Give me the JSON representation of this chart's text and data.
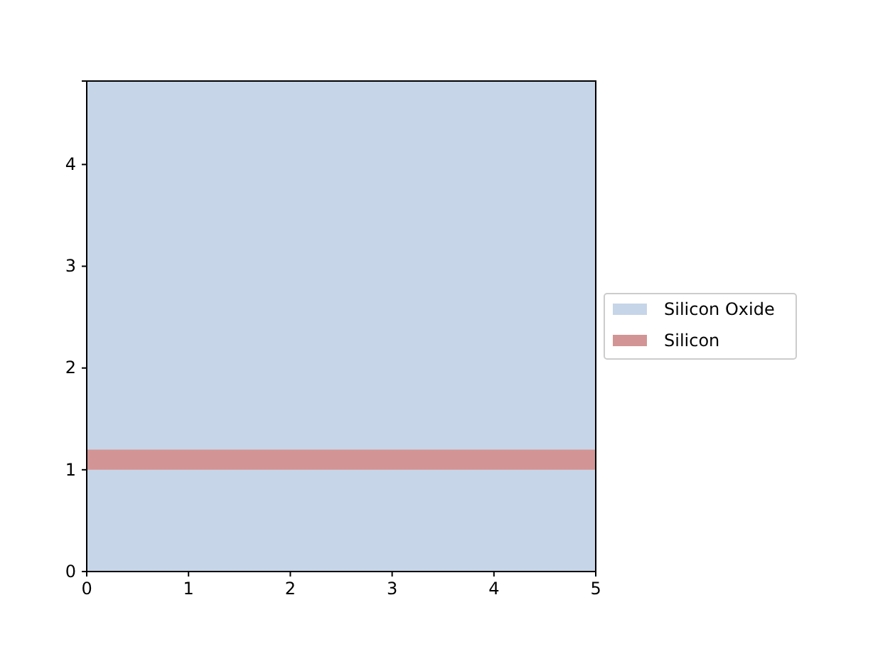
{
  "chart_data": {
    "type": "area",
    "xlim": [
      0,
      5
    ],
    "xticks": [
      0,
      1,
      2,
      3,
      4,
      5
    ],
    "ylim": [
      0,
      4.82
    ],
    "yticks": [
      0,
      1,
      2,
      3,
      4
    ],
    "legend": "right",
    "bands": [
      {
        "axis": "y",
        "from": 0,
        "to": 1.0,
        "label": "Silicon Oxide",
        "color": "#c6d5e8"
      },
      {
        "axis": "y",
        "from": 1.0,
        "to": 1.2,
        "label": "Silicon",
        "color": "#d29494"
      },
      {
        "axis": "y",
        "from": 1.2,
        "to": 4.82,
        "label": null,
        "color": "#c6d5e8"
      }
    ]
  }
}
